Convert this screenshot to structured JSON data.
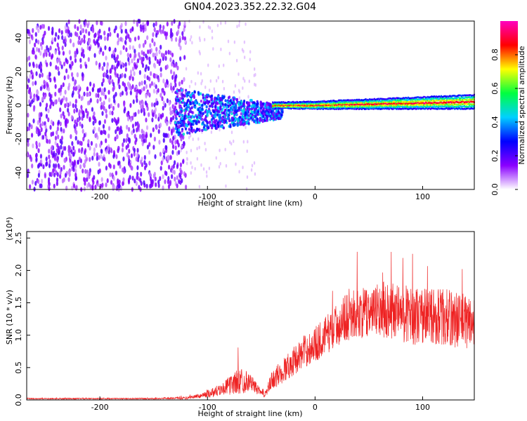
{
  "figure": {
    "title": "GN04.2023.352.22.32.G04"
  },
  "chart_data": [
    {
      "type": "heatmap",
      "xlabel": "Height of straight line (km)",
      "ylabel": "Frequency (Hz)",
      "xlim": [
        -268,
        148
      ],
      "ylim": [
        -50,
        50
      ],
      "xticks": [
        -200,
        -100,
        0,
        100
      ],
      "yticks": [
        -40,
        -20,
        0,
        20,
        40
      ],
      "colorbar": {
        "label": "Normalized spectral amplitude",
        "range": [
          0.0,
          1.0
        ],
        "ticks": [
          "0.0",
          "0.2",
          "0.4",
          "0.6",
          "0.8"
        ],
        "colors": [
          "#ffffff",
          "#8a00ff",
          "#0000ff",
          "#00d0ff",
          "#00ff40",
          "#ffff00",
          "#ff0000",
          "#ff00c0"
        ]
      },
      "regions": [
        {
          "x": [
            -268,
            -120
          ],
          "f": [
            -50,
            50
          ],
          "amplitude": 0.12,
          "description": "broadband noise"
        },
        {
          "x": [
            -130,
            -30
          ],
          "f": [
            -15,
            10
          ],
          "amplitude": 0.35
        },
        {
          "x": [
            -30,
            148
          ],
          "f": [
            -3,
            5
          ],
          "amplitude": 0.85,
          "center_f": [
            0,
            2
          ]
        }
      ]
    },
    {
      "type": "line",
      "xlabel": "Height of straight line (km)",
      "ylabel": "SNR (10 * v/v)",
      "y_scale_label": "(x10⁴)",
      "xlim": [
        -268,
        148
      ],
      "ylim": [
        0,
        2.6
      ],
      "xticks": [
        -200,
        -100,
        0,
        100
      ],
      "yticks": [
        0.0,
        0.5,
        1.0,
        1.5,
        2.0,
        2.5
      ],
      "color": "#ee2222",
      "envelope": {
        "x": [
          -268,
          -150,
          -120,
          -105,
          -95,
          -85,
          -75,
          -68,
          -60,
          -50,
          -45,
          -40,
          -30,
          -20,
          -10,
          0,
          10,
          20,
          30,
          50,
          70,
          90,
          110,
          130,
          148
        ],
        "mean": [
          0.02,
          0.02,
          0.03,
          0.07,
          0.12,
          0.18,
          0.26,
          0.3,
          0.28,
          0.1,
          0.12,
          0.3,
          0.45,
          0.6,
          0.75,
          0.85,
          1.0,
          1.15,
          1.3,
          1.35,
          1.4,
          1.3,
          1.3,
          1.25,
          1.2
        ],
        "amp": [
          0.01,
          0.01,
          0.02,
          0.04,
          0.08,
          0.1,
          0.18,
          0.22,
          0.12,
          0.06,
          0.08,
          0.15,
          0.2,
          0.22,
          0.25,
          0.28,
          0.3,
          0.33,
          0.38,
          0.4,
          0.45,
          0.45,
          0.45,
          0.45,
          0.42
        ]
      }
    }
  ]
}
